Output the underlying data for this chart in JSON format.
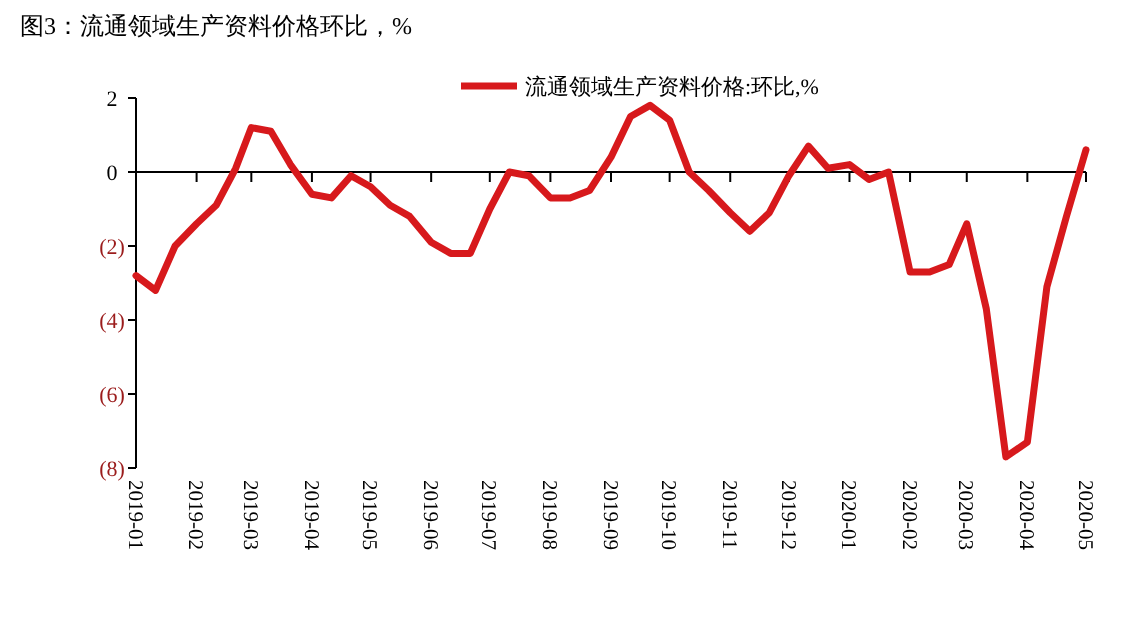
{
  "chart_data": {
    "type": "line",
    "title": "图3：流通领域生产资料价格环比，%",
    "legend": "top",
    "x": [
      "2019-01-01",
      "2019-01-11",
      "2019-01-21",
      "2019-02-01",
      "2019-02-11",
      "2019-02-21",
      "2019-03-01",
      "2019-03-11",
      "2019-03-21",
      "2019-04-01",
      "2019-04-11",
      "2019-04-21",
      "2019-05-01",
      "2019-05-11",
      "2019-05-21",
      "2019-06-01",
      "2019-06-11",
      "2019-06-21",
      "2019-07-01",
      "2019-07-11",
      "2019-07-21",
      "2019-08-01",
      "2019-08-11",
      "2019-08-21",
      "2019-09-01",
      "2019-09-11",
      "2019-09-21",
      "2019-10-01",
      "2019-10-11",
      "2019-10-21",
      "2019-11-01",
      "2019-11-11",
      "2019-11-21",
      "2019-12-01",
      "2019-12-11",
      "2019-12-21",
      "2020-01-01",
      "2020-01-11",
      "2020-01-21",
      "2020-02-01",
      "2020-02-11",
      "2020-02-21",
      "2020-03-01",
      "2020-03-11",
      "2020-03-21",
      "2020-04-01",
      "2020-04-11",
      "2020-04-21",
      "2020-05-01"
    ],
    "series": [
      {
        "name": "流通领域生产资料价格:环比,%",
        "color": "#d7191c",
        "values": [
          -2.8,
          -3.2,
          -2.0,
          -1.4,
          -0.9,
          0.1,
          1.2,
          1.1,
          0.2,
          -0.6,
          -0.7,
          -0.1,
          -0.4,
          -0.9,
          -1.2,
          -1.9,
          -2.2,
          -2.2,
          -1.0,
          0.0,
          -0.1,
          -0.7,
          -0.7,
          -0.5,
          0.4,
          1.5,
          1.8,
          1.4,
          0.0,
          -0.5,
          -1.1,
          -1.6,
          -1.1,
          -0.1,
          0.7,
          0.1,
          0.2,
          -0.2,
          0.0,
          -2.7,
          -2.7,
          -2.5,
          -1.4,
          -3.7,
          -7.7,
          -7.3,
          -3.1,
          -1.2,
          0.6
        ]
      }
    ],
    "xlim": [
      "2019-01-01",
      "2020-05-01"
    ],
    "xticks": [
      {
        "value": "2019-01-01",
        "label": "2019-01"
      },
      {
        "value": "2019-02-01",
        "label": "2019-02"
      },
      {
        "value": "2019-03-01",
        "label": "2019-03"
      },
      {
        "value": "2019-04-01",
        "label": "2019-04"
      },
      {
        "value": "2019-05-01",
        "label": "2019-05"
      },
      {
        "value": "2019-06-01",
        "label": "2019-06"
      },
      {
        "value": "2019-07-01",
        "label": "2019-07"
      },
      {
        "value": "2019-08-01",
        "label": "2019-08"
      },
      {
        "value": "2019-09-01",
        "label": "2019-09"
      },
      {
        "value": "2019-10-01",
        "label": "2019-10"
      },
      {
        "value": "2019-11-01",
        "label": "2019-11"
      },
      {
        "value": "2019-12-01",
        "label": "2019-12"
      },
      {
        "value": "2020-01-01",
        "label": "2020-01"
      },
      {
        "value": "2020-02-01",
        "label": "2020-02"
      },
      {
        "value": "2020-03-01",
        "label": "2020-03"
      },
      {
        "value": "2020-04-01",
        "label": "2020-04"
      },
      {
        "value": "2020-05-01",
        "label": "2020-05"
      }
    ],
    "ylim": [
      -8,
      2
    ],
    "yticks": [
      2,
      0,
      {
        "value": -2,
        "label": "(2)"
      },
      {
        "value": -4,
        "label": "(4)"
      },
      {
        "value": -6,
        "label": "(6)"
      },
      {
        "value": -8,
        "label": "(8)"
      }
    ]
  }
}
